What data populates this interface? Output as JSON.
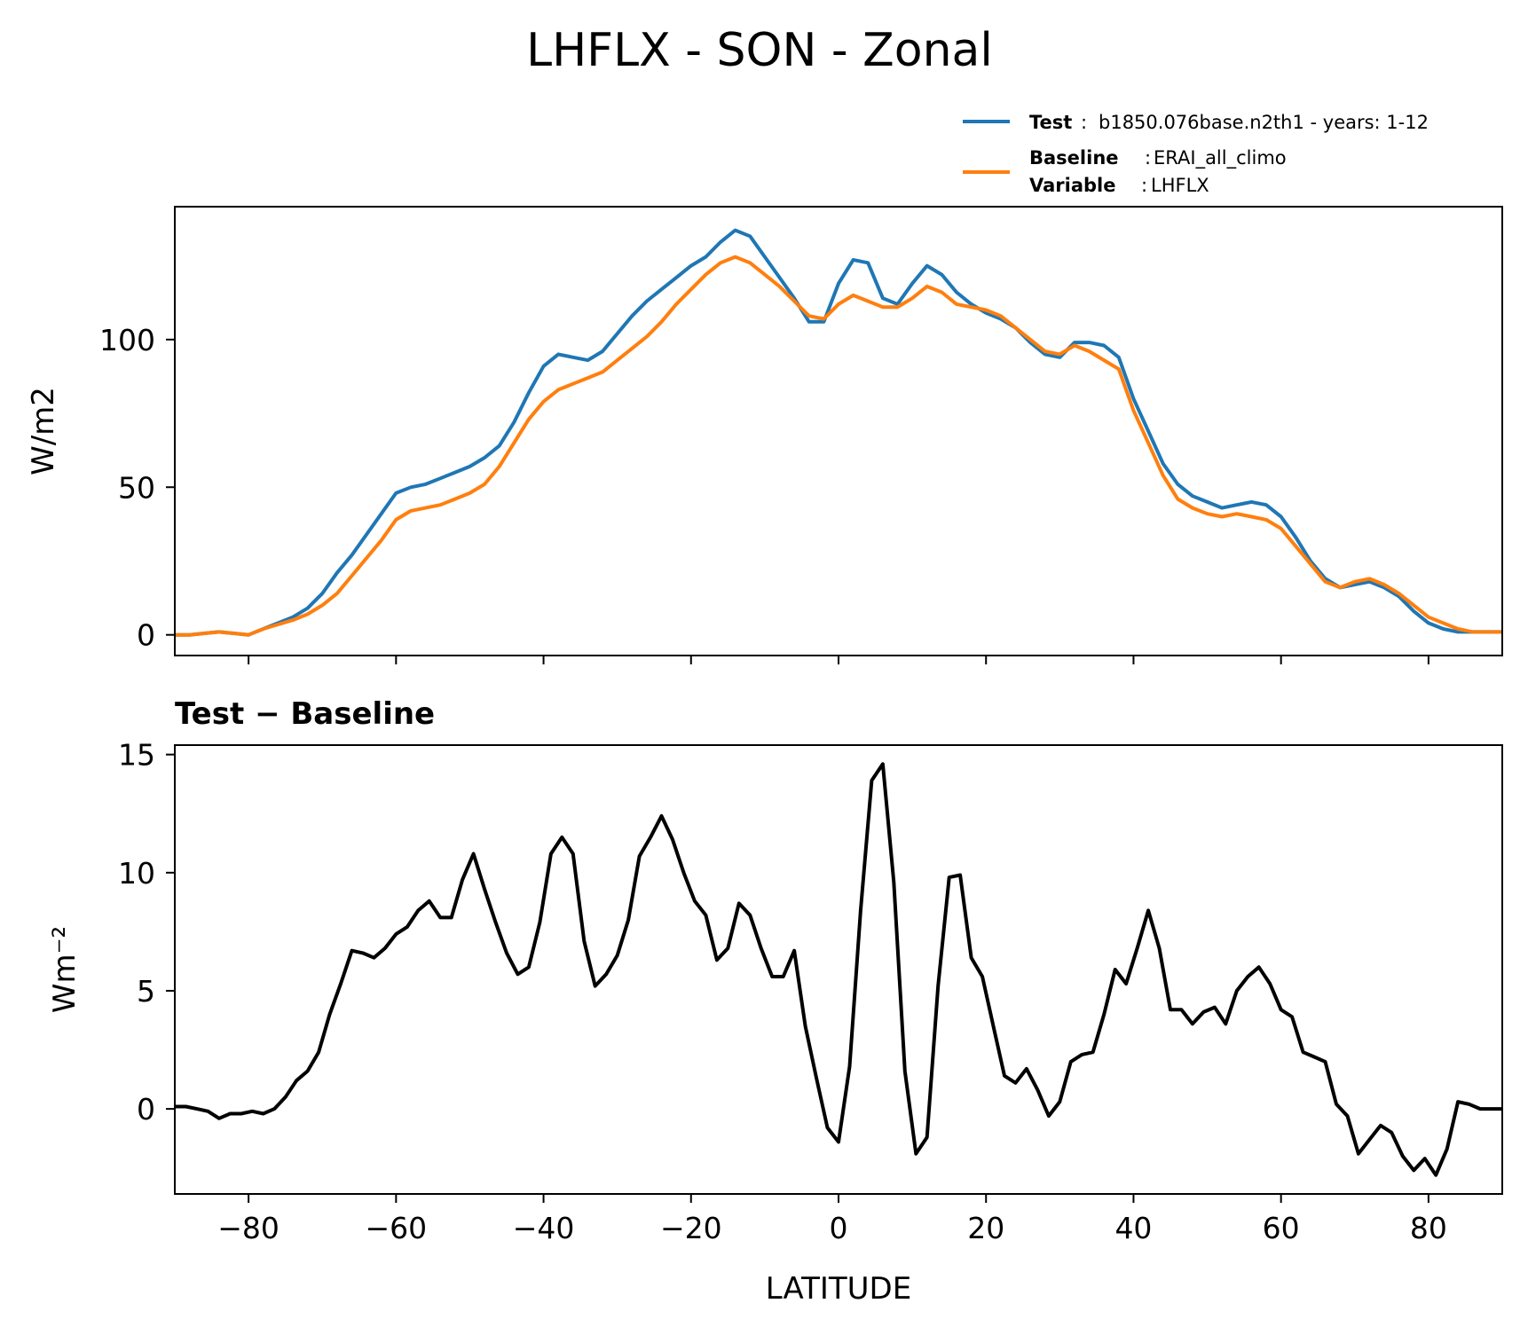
{
  "title": "LHFLX - SON - Zonal",
  "colors": {
    "test": "#1f77b4",
    "baseline": "#ff7f0e",
    "diff": "#000000"
  },
  "legend": {
    "test_key": "Test",
    "test_value": "b1850.076base.n2th1 - years: 1-12",
    "baseline_key": "Baseline",
    "baseline_value": "ERAI_all_climo",
    "variable_key": "Variable",
    "variable_value": "LHFLX"
  },
  "chart_data": [
    {
      "type": "line",
      "ylabel": "W/m2",
      "xlim": [
        -90,
        90
      ],
      "ylim": [
        -7,
        145
      ],
      "yticks": [
        0,
        50,
        100
      ],
      "grid": false,
      "legend_position": "above-right",
      "x": [
        -90,
        -88,
        -86,
        -84,
        -82,
        -80,
        -78,
        -76,
        -74,
        -72,
        -70,
        -68,
        -66,
        -64,
        -62,
        -60,
        -58,
        -56,
        -54,
        -52,
        -50,
        -48,
        -46,
        -44,
        -42,
        -40,
        -38,
        -36,
        -34,
        -32,
        -30,
        -28,
        -26,
        -24,
        -22,
        -20,
        -18,
        -16,
        -14,
        -12,
        -10,
        -8,
        -6,
        -4,
        -2,
        0,
        2,
        4,
        6,
        8,
        10,
        12,
        14,
        16,
        18,
        20,
        22,
        24,
        26,
        28,
        30,
        32,
        34,
        36,
        38,
        40,
        42,
        44,
        46,
        48,
        50,
        52,
        54,
        56,
        58,
        60,
        62,
        64,
        66,
        68,
        70,
        72,
        74,
        76,
        78,
        80,
        82,
        84,
        86,
        88,
        90
      ],
      "series": [
        {
          "name": "Test",
          "values": [
            0,
            0,
            0.5,
            1,
            0.5,
            0,
            2,
            4,
            6,
            9,
            14,
            21,
            27,
            34,
            41,
            48,
            50,
            51,
            53,
            55,
            57,
            60,
            64,
            72,
            82,
            91,
            95,
            94,
            93,
            96,
            102,
            108,
            113,
            117,
            121,
            125,
            128,
            133,
            137,
            135,
            128,
            121,
            114,
            106,
            106,
            119,
            127,
            126,
            114,
            112,
            119,
            125,
            122,
            116,
            112,
            109,
            107,
            104,
            99,
            95,
            94,
            99,
            99,
            98,
            94,
            80,
            69,
            58,
            51,
            47,
            45,
            43,
            44,
            45,
            44,
            40,
            33,
            25,
            19,
            16,
            17,
            18,
            16,
            13,
            8,
            4,
            2,
            1,
            1,
            1,
            1
          ]
        },
        {
          "name": "Baseline",
          "values": [
            0,
            0,
            0.5,
            1,
            0.5,
            0,
            2,
            3.5,
            5,
            7,
            10,
            14,
            20,
            26,
            32,
            39,
            42,
            43,
            44,
            46,
            48,
            51,
            57,
            65,
            73,
            79,
            83,
            85,
            87,
            89,
            93,
            97,
            101,
            106,
            112,
            117,
            122,
            126,
            128,
            126,
            122,
            118,
            113,
            108,
            107,
            112,
            115,
            113,
            111,
            111,
            114,
            118,
            116,
            112,
            111,
            110,
            108,
            104,
            100,
            96,
            95,
            98,
            96,
            93,
            90,
            76,
            65,
            54,
            46,
            43,
            41,
            40,
            41,
            40,
            39,
            36,
            30,
            24,
            18,
            16,
            18,
            19,
            17,
            14,
            10,
            6,
            4,
            2,
            1,
            1,
            1
          ]
        }
      ]
    },
    {
      "type": "line",
      "title": "Test − Baseline",
      "xlabel": "LATITUDE",
      "ylabel": "Wm⁻²",
      "xlim": [
        -90,
        90
      ],
      "ylim": [
        -3.6,
        15.4
      ],
      "yticks": [
        0,
        5,
        10,
        15
      ],
      "xticks": [
        -80,
        -60,
        -40,
        -20,
        0,
        20,
        40,
        60,
        80
      ],
      "xticklabels": [
        "−80",
        "−60",
        "−40",
        "−20",
        "0",
        "20",
        "40",
        "60",
        "80"
      ],
      "grid": false,
      "series": [
        {
          "name": "Test − Baseline",
          "x": [
            -90,
            -88.5,
            -87,
            -85.5,
            -84,
            -82.5,
            -81,
            -79.5,
            -78,
            -76.5,
            -75,
            -73.5,
            -72,
            -70.5,
            -69,
            -67.5,
            -66,
            -64.5,
            -63,
            -61.5,
            -60,
            -58.5,
            -57,
            -55.5,
            -54,
            -52.5,
            -51,
            -49.5,
            -48,
            -46.5,
            -45,
            -43.5,
            -42,
            -40.5,
            -39,
            -37.5,
            -36,
            -34.5,
            -33,
            -31.5,
            -30,
            -28.5,
            -27,
            -25.5,
            -24,
            -22.5,
            -21,
            -19.5,
            -18,
            -16.5,
            -15,
            -13.5,
            -12,
            -10.5,
            -9,
            -7.5,
            -6,
            -4.5,
            -3,
            -1.5,
            0,
            1.5,
            3,
            4.5,
            6,
            7.5,
            9,
            10.5,
            12,
            13.5,
            15,
            16.5,
            18,
            19.5,
            21,
            22.5,
            24,
            25.5,
            27,
            28.5,
            30,
            31.5,
            33,
            34.5,
            36,
            37.5,
            39,
            40.5,
            42,
            43.5,
            45,
            46.5,
            48,
            49.5,
            51,
            52.5,
            54,
            55.5,
            57,
            58.5,
            60,
            61.5,
            63,
            64.5,
            66,
            67.5,
            69,
            70.5,
            72,
            73.5,
            75,
            76.5,
            78,
            79.5,
            81,
            82.5,
            84,
            85.5,
            87,
            88.5,
            90
          ],
          "values": [
            0.1,
            0.1,
            0,
            -0.1,
            -0.4,
            -0.2,
            -0.2,
            -0.1,
            -0.2,
            0,
            0.5,
            1.2,
            1.6,
            2.4,
            4,
            5.3,
            6.7,
            6.6,
            6.4,
            6.8,
            7.4,
            7.7,
            8.4,
            8.8,
            8.1,
            8.1,
            9.7,
            10.8,
            9.3,
            7.9,
            6.6,
            5.7,
            6,
            7.9,
            10.8,
            11.5,
            10.8,
            7.1,
            5.2,
            5.7,
            6.5,
            8,
            10.7,
            11.5,
            12.4,
            11.4,
            10,
            8.8,
            8.2,
            6.3,
            6.8,
            8.7,
            8.2,
            6.8,
            5.6,
            5.6,
            6.7,
            3.5,
            1.3,
            -0.8,
            -1.4,
            1.8,
            8.4,
            13.9,
            14.6,
            9.6,
            1.6,
            -1.9,
            -1.2,
            5.2,
            9.8,
            9.9,
            6.4,
            5.6,
            3.5,
            1.4,
            1.1,
            1.7,
            0.8,
            -0.3,
            0.3,
            2,
            2.3,
            2.4,
            4,
            5.9,
            5.3,
            6.8,
            8.4,
            6.8,
            4.2,
            4.2,
            3.6,
            4.1,
            4.3,
            3.6,
            5,
            5.6,
            6,
            5.3,
            4.2,
            3.9,
            2.4,
            2.2,
            2,
            0.2,
            -0.3,
            -1.9,
            -1.3,
            -0.7,
            -1,
            -2,
            -2.6,
            -2.1,
            -2.8,
            -1.7,
            0.3,
            0.2,
            0,
            0,
            0
          ]
        }
      ]
    }
  ]
}
